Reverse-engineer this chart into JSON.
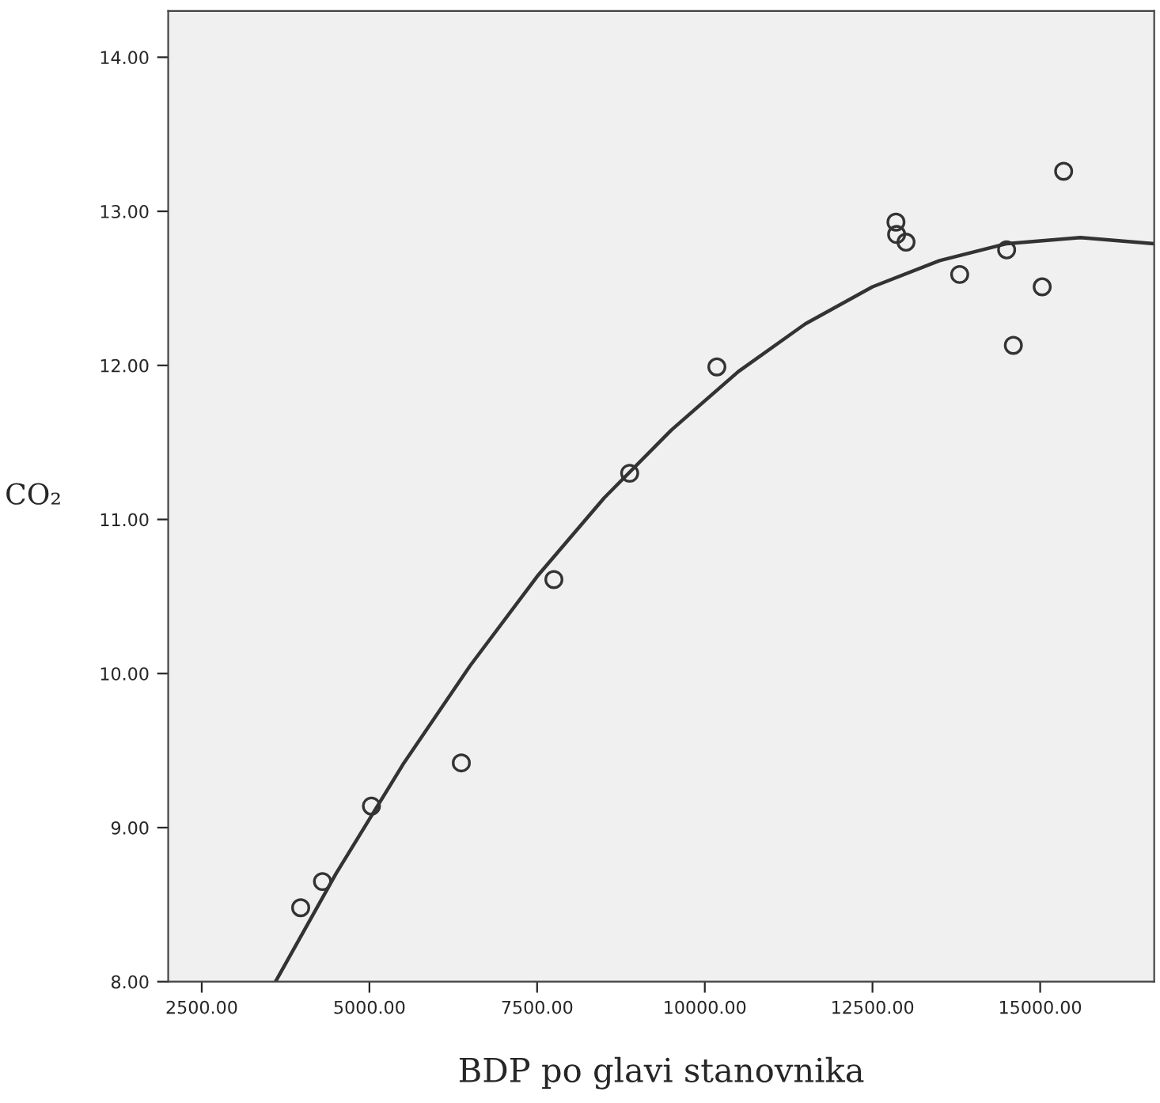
{
  "chart_data": {
    "type": "scatter",
    "xlabel": "BDP po glavi stanovnika",
    "ylabel": "CO₂",
    "xlim": [
      2000,
      16700
    ],
    "ylim": [
      8,
      14.3
    ],
    "xticks": [
      {
        "value": 2500,
        "label": "2500.00"
      },
      {
        "value": 5000,
        "label": "5000.00"
      },
      {
        "value": 7500,
        "label": "7500.00"
      },
      {
        "value": 10000,
        "label": "10000.00"
      },
      {
        "value": 12500,
        "label": "12500.00"
      },
      {
        "value": 15000,
        "label": "15000.00"
      }
    ],
    "yticks": [
      {
        "value": 8,
        "label": "8.00"
      },
      {
        "value": 9,
        "label": "9.00"
      },
      {
        "value": 10,
        "label": "10.00"
      },
      {
        "value": 11,
        "label": "11.00"
      },
      {
        "value": 12,
        "label": "12.00"
      },
      {
        "value": 13,
        "label": "13.00"
      },
      {
        "value": 14,
        "label": "14.00"
      }
    ],
    "grid": false,
    "series": [
      {
        "color": "#333333",
        "marker": "circle",
        "x": [
          3975,
          4300,
          5030,
          6370,
          7750,
          8880,
          10180,
          12850,
          12860,
          13000,
          13800,
          14500,
          14600,
          15030,
          15350
        ],
        "values": [
          8.48,
          8.65,
          9.14,
          9.42,
          10.61,
          11.3,
          11.99,
          12.93,
          12.85,
          12.8,
          12.59,
          12.75,
          12.13,
          12.51,
          13.26
        ]
      },
      {
        "type": "line",
        "color": "#333333",
        "marker": "none",
        "x": [
          3600,
          4500,
          5500,
          6500,
          7500,
          8500,
          9500,
          10500,
          11500,
          12500,
          13500,
          14500,
          15600,
          16700
        ],
        "values": [
          8.0,
          8.7,
          9.41,
          10.05,
          10.63,
          11.14,
          11.58,
          11.96,
          12.27,
          12.51,
          12.68,
          12.79,
          12.83,
          12.79
        ]
      }
    ]
  }
}
